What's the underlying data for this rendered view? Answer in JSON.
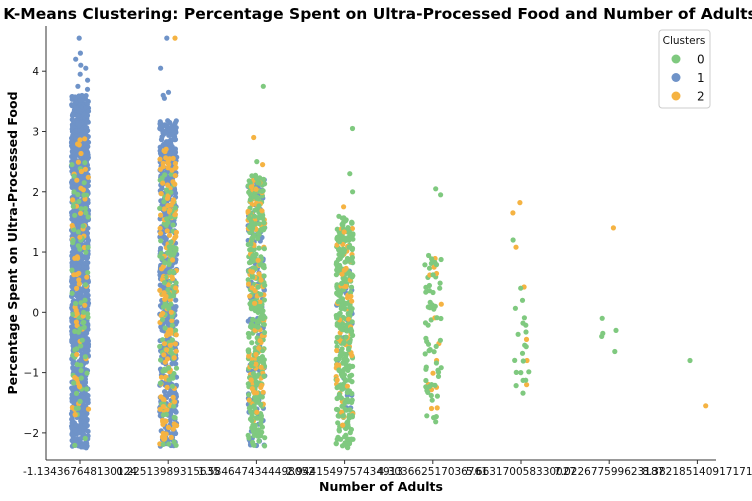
{
  "chart_data": {
    "type": "scatter",
    "title": "K-Means Clustering: Percentage Spent on Ultra-Processed Food and Number of Adults",
    "xlabel": "Number of Adults",
    "ylabel": "Percentage Spent on Ultra-Processed Food",
    "categories": [
      "-1.134367648130124",
      "0.22513989315635",
      "1.5846474344498052",
      "2.9441549757434913",
      "4.303662517036761",
      "5.663170058330027",
      "7.022677599623187",
      "8.382185140917171"
    ],
    "ylim": [
      -2.45,
      4.75
    ],
    "yticks": [
      -2,
      -1,
      0,
      1,
      2,
      3,
      4
    ],
    "grid": false,
    "legend": {
      "title": "Clusters",
      "position": "top-right",
      "entries": [
        {
          "label": "0",
          "color": "#7fc97f"
        },
        {
          "label": "1",
          "color": "#6f93c8"
        },
        {
          "label": "2",
          "color": "#f5b342"
        }
      ]
    },
    "series": [
      {
        "name": "0",
        "color": "#7fc97f",
        "groups": [
          {
            "category": 0,
            "range": [
              -2.25,
              2.5
            ],
            "count": 70,
            "extra": [
              2.45
            ]
          },
          {
            "category": 1,
            "range": [
              -2.25,
              2.3
            ],
            "count": 120,
            "extra": []
          },
          {
            "category": 2,
            "range": [
              -2.25,
              2.3
            ],
            "count": 300,
            "extra": [
              3.75,
              2.5
            ]
          },
          {
            "category": 3,
            "range": [
              -2.25,
              1.6
            ],
            "count": 320,
            "extra": [
              3.05,
              2.3,
              2.0
            ]
          },
          {
            "category": 4,
            "range": [
              -1.9,
              1.0
            ],
            "count": 60,
            "extra": [
              2.05,
              1.95
            ]
          },
          {
            "category": 5,
            "range": [
              -1.4,
              0.5
            ],
            "count": 18,
            "extra": [
              1.2,
              0.2,
              0.4
            ]
          },
          {
            "category": 6,
            "range": [
              -0.65,
              -0.1
            ],
            "count": 0,
            "extra": [
              -0.1,
              -0.3,
              -0.35,
              -0.4,
              -0.65
            ]
          },
          {
            "category": 7,
            "range": [
              -0.8,
              -0.8
            ],
            "count": 0,
            "extra": [
              -0.8
            ]
          }
        ]
      },
      {
        "name": "1",
        "color": "#6f93c8",
        "groups": [
          {
            "category": 0,
            "range": [
              -2.25,
              3.6
            ],
            "count": 1300,
            "extra": [
              4.55,
              4.3,
              4.2,
              4.1,
              4.05,
              3.95,
              3.85,
              3.75,
              3.7
            ]
          },
          {
            "category": 1,
            "range": [
              -2.25,
              3.2
            ],
            "count": 520,
            "extra": [
              4.55,
              4.05,
              3.65,
              3.6,
              3.55
            ]
          },
          {
            "category": 2,
            "range": [
              -2.25,
              2.2
            ],
            "count": 140,
            "extra": []
          },
          {
            "category": 3,
            "range": [
              -1.6,
              1.0
            ],
            "count": 25,
            "extra": []
          }
        ]
      },
      {
        "name": "2",
        "color": "#f5b342",
        "groups": [
          {
            "category": 0,
            "range": [
              -2.2,
              2.9
            ],
            "count": 60,
            "extra": []
          },
          {
            "category": 1,
            "range": [
              -2.2,
              2.8
            ],
            "count": 140,
            "extra": [
              4.55
            ]
          },
          {
            "category": 2,
            "range": [
              -2.0,
              2.2
            ],
            "count": 110,
            "extra": [
              2.9,
              2.45
            ]
          },
          {
            "category": 3,
            "range": [
              -1.9,
              1.5
            ],
            "count": 60,
            "extra": [
              1.75
            ]
          },
          {
            "category": 4,
            "range": [
              -1.85,
              0.9
            ],
            "count": 14,
            "extra": []
          },
          {
            "category": 5,
            "range": [
              -1.2,
              1.1
            ],
            "count": 0,
            "extra": [
              1.82,
              1.65,
              1.08,
              0.42,
              -0.45,
              -0.8,
              -1.2
            ]
          },
          {
            "category": 6,
            "range": [
              1.4,
              1.4
            ],
            "count": 0,
            "extra": [
              1.4
            ]
          },
          {
            "category": 7,
            "range": [
              -1.55,
              -1.55
            ],
            "count": 0,
            "extra": [
              -1.55
            ]
          }
        ]
      }
    ]
  }
}
